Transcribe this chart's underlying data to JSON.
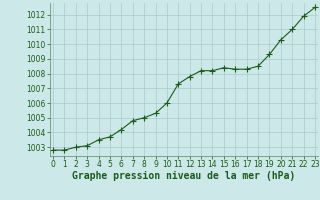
{
  "x": [
    0,
    1,
    2,
    3,
    4,
    5,
    6,
    7,
    8,
    9,
    10,
    11,
    12,
    13,
    14,
    15,
    16,
    17,
    18,
    19,
    20,
    21,
    22,
    23
  ],
  "y": [
    1002.8,
    1002.8,
    1003.0,
    1003.1,
    1003.5,
    1003.7,
    1004.2,
    1004.8,
    1005.0,
    1005.3,
    1006.0,
    1007.3,
    1007.8,
    1008.2,
    1008.2,
    1008.4,
    1008.3,
    1008.3,
    1008.5,
    1009.3,
    1010.3,
    1011.0,
    1011.9,
    1012.5
  ],
  "line_color": "#1a5c1a",
  "marker": "+",
  "marker_size": 4,
  "linewidth": 0.8,
  "bg_color": "#cce8e8",
  "grid_color": "#aacccc",
  "xlabel": "Graphe pression niveau de la mer (hPa)",
  "xlabel_color": "#1a5c1a",
  "xlabel_fontsize": 7.0,
  "ytick_min": 1003,
  "ytick_max": 1012,
  "ytick_step": 1,
  "xtick_min": 0,
  "xtick_max": 23,
  "tick_fontsize": 5.5,
  "tick_color": "#1a5c1a",
  "ylim_min": 1002.4,
  "ylim_max": 1012.8,
  "xlim_min": -0.3,
  "xlim_max": 23.3
}
